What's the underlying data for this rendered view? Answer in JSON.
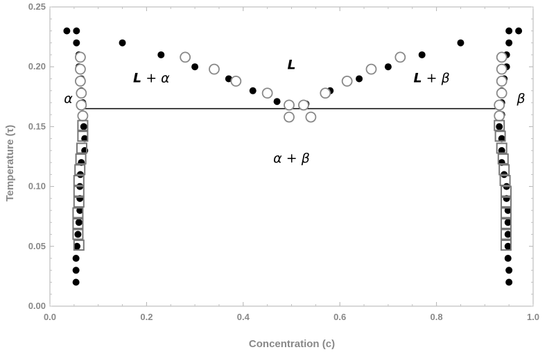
{
  "chart_data": {
    "type": "scatter",
    "title": "",
    "xlabel": "Concentration (c)",
    "ylabel": "Temperature (τ)",
    "xlim": [
      0.0,
      1.0
    ],
    "ylim": [
      0.0,
      0.25
    ],
    "x_ticks": [
      "0.0",
      "0.2",
      "0.4",
      "0.6",
      "0.8",
      "1.0"
    ],
    "y_ticks": [
      "0.00",
      "0.05",
      "0.10",
      "0.15",
      "0.20",
      "0.25"
    ],
    "grid": false,
    "colors": {
      "filled": "#000000",
      "open": "#888888",
      "square": "#777777",
      "line": "#000000"
    },
    "eutectic_line": {
      "x": [
        0.07,
        0.93
      ],
      "y": [
        0.165,
        0.165
      ]
    },
    "annotations": [
      {
        "text": "L + α",
        "x": 0.21,
        "y": 0.187,
        "bold_prefix": "L"
      },
      {
        "text": "L",
        "x": 0.5,
        "y": 0.198,
        "bold_prefix": "L"
      },
      {
        "text": "L + β",
        "x": 0.79,
        "y": 0.187,
        "bold_prefix": "L"
      },
      {
        "text": "α",
        "x": 0.038,
        "y": 0.17
      },
      {
        "text": "β",
        "x": 0.975,
        "y": 0.17
      },
      {
        "text": "α + β",
        "x": 0.5,
        "y": 0.12
      }
    ],
    "series": [
      {
        "marker": "filled-circle",
        "points": [
          [
            0.035,
            0.23
          ],
          [
            0.055,
            0.23
          ],
          [
            0.055,
            0.22
          ],
          [
            0.06,
            0.21
          ],
          [
            0.06,
            0.2
          ],
          [
            0.065,
            0.19
          ],
          [
            0.065,
            0.18
          ],
          [
            0.068,
            0.17
          ],
          [
            0.07,
            0.16
          ],
          [
            0.07,
            0.15
          ],
          [
            0.072,
            0.14
          ],
          [
            0.072,
            0.13
          ],
          [
            0.065,
            0.12
          ],
          [
            0.063,
            0.11
          ],
          [
            0.062,
            0.1
          ],
          [
            0.062,
            0.09
          ],
          [
            0.062,
            0.08
          ],
          [
            0.06,
            0.07
          ],
          [
            0.058,
            0.06
          ],
          [
            0.056,
            0.05
          ],
          [
            0.054,
            0.04
          ],
          [
            0.054,
            0.03
          ],
          [
            0.054,
            0.02
          ],
          [
            0.15,
            0.22
          ],
          [
            0.23,
            0.21
          ],
          [
            0.3,
            0.2
          ],
          [
            0.37,
            0.19
          ],
          [
            0.42,
            0.18
          ],
          [
            0.47,
            0.171
          ],
          [
            0.53,
            0.169
          ],
          [
            0.58,
            0.18
          ],
          [
            0.64,
            0.19
          ],
          [
            0.7,
            0.2
          ],
          [
            0.77,
            0.21
          ],
          [
            0.85,
            0.22
          ],
          [
            0.95,
            0.23
          ],
          [
            0.97,
            0.23
          ],
          [
            0.95,
            0.22
          ],
          [
            0.945,
            0.21
          ],
          [
            0.945,
            0.2
          ],
          [
            0.94,
            0.19
          ],
          [
            0.935,
            0.18
          ],
          [
            0.935,
            0.17
          ],
          [
            0.935,
            0.16
          ],
          [
            0.93,
            0.15
          ],
          [
            0.935,
            0.14
          ],
          [
            0.935,
            0.13
          ],
          [
            0.935,
            0.12
          ],
          [
            0.94,
            0.11
          ],
          [
            0.945,
            0.1
          ],
          [
            0.945,
            0.09
          ],
          [
            0.948,
            0.08
          ],
          [
            0.948,
            0.07
          ],
          [
            0.948,
            0.06
          ],
          [
            0.948,
            0.05
          ],
          [
            0.948,
            0.04
          ],
          [
            0.95,
            0.03
          ],
          [
            0.95,
            0.02
          ]
        ]
      },
      {
        "marker": "open-circle",
        "points": [
          [
            0.063,
            0.208
          ],
          [
            0.063,
            0.198
          ],
          [
            0.063,
            0.188
          ],
          [
            0.065,
            0.178
          ],
          [
            0.065,
            0.168
          ],
          [
            0.068,
            0.159
          ],
          [
            0.28,
            0.208
          ],
          [
            0.34,
            0.198
          ],
          [
            0.385,
            0.188
          ],
          [
            0.45,
            0.178
          ],
          [
            0.495,
            0.168
          ],
          [
            0.495,
            0.158
          ],
          [
            0.525,
            0.168
          ],
          [
            0.54,
            0.158
          ],
          [
            0.57,
            0.178
          ],
          [
            0.615,
            0.188
          ],
          [
            0.665,
            0.198
          ],
          [
            0.725,
            0.208
          ],
          [
            0.935,
            0.208
          ],
          [
            0.935,
            0.198
          ],
          [
            0.935,
            0.188
          ],
          [
            0.935,
            0.178
          ],
          [
            0.93,
            0.168
          ],
          [
            0.93,
            0.159
          ]
        ]
      },
      {
        "marker": "open-square",
        "points": [
          [
            0.068,
            0.151
          ],
          [
            0.068,
            0.142
          ],
          [
            0.066,
            0.132
          ],
          [
            0.064,
            0.123
          ],
          [
            0.062,
            0.114
          ],
          [
            0.06,
            0.105
          ],
          [
            0.06,
            0.096
          ],
          [
            0.06,
            0.087
          ],
          [
            0.058,
            0.078
          ],
          [
            0.058,
            0.069
          ],
          [
            0.058,
            0.06
          ],
          [
            0.06,
            0.051
          ],
          [
            0.93,
            0.151
          ],
          [
            0.932,
            0.142
          ],
          [
            0.935,
            0.132
          ],
          [
            0.938,
            0.123
          ],
          [
            0.94,
            0.114
          ],
          [
            0.942,
            0.105
          ],
          [
            0.944,
            0.096
          ],
          [
            0.944,
            0.087
          ],
          [
            0.944,
            0.078
          ],
          [
            0.944,
            0.069
          ],
          [
            0.944,
            0.06
          ],
          [
            0.944,
            0.051
          ]
        ]
      }
    ]
  }
}
